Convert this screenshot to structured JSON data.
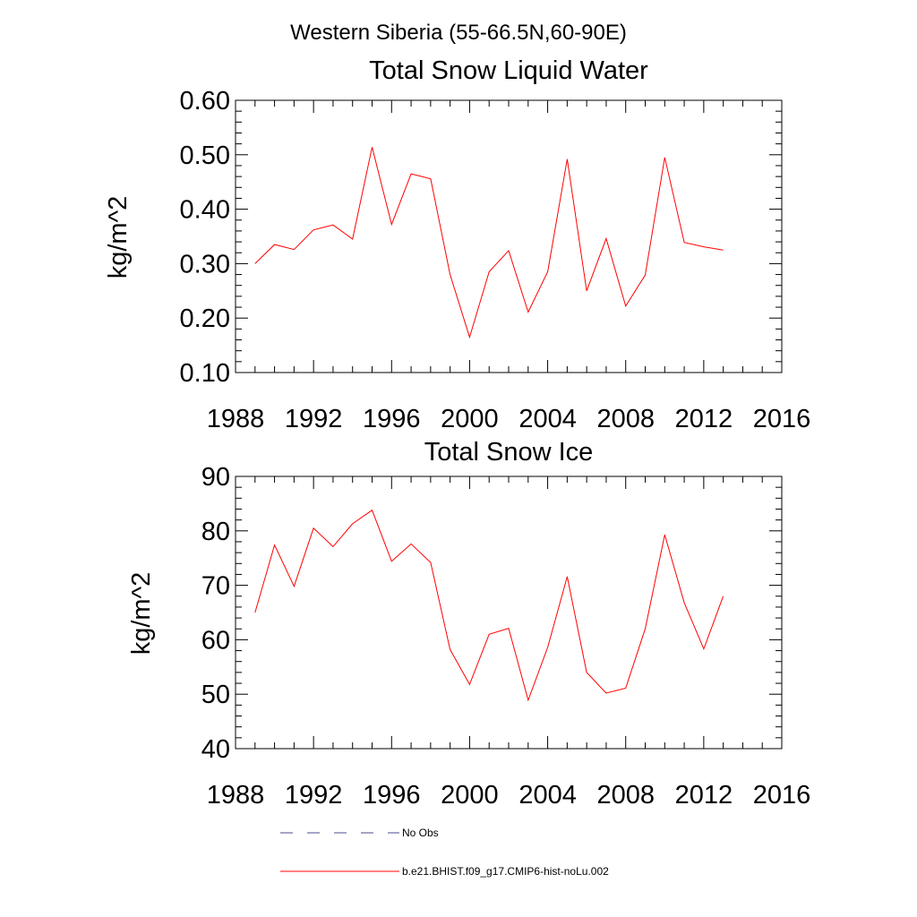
{
  "figure": {
    "title": "Western Siberia (55-66.5N,60-90E)"
  },
  "chart_data": [
    {
      "type": "line",
      "title": "Total Snow Liquid Water",
      "xlabel": "",
      "ylabel": "kg/m^2",
      "xlim": [
        1988,
        2016
      ],
      "ylim": [
        0.1,
        0.6
      ],
      "x_ticks": [
        "1988",
        "1992",
        "1996",
        "2000",
        "2004",
        "2008",
        "2012",
        "2016"
      ],
      "y_ticks": [
        "0.10",
        "0.20",
        "0.30",
        "0.40",
        "0.50",
        "0.60"
      ],
      "x": [
        1989,
        1990,
        1991,
        1992,
        1993,
        1994,
        1995,
        1996,
        1997,
        1998,
        1999,
        2000,
        2001,
        2002,
        2003,
        2004,
        2005,
        2006,
        2007,
        2008,
        2009,
        2010,
        2011,
        2012,
        2013
      ],
      "series": [
        {
          "name": "b.e21.BHIST.f09_g17.CMIP6-hist-noLu.002",
          "color": "#ff0000",
          "values": [
            0.3,
            0.335,
            0.326,
            0.362,
            0.371,
            0.345,
            0.514,
            0.372,
            0.465,
            0.456,
            0.28,
            0.165,
            0.285,
            0.324,
            0.211,
            0.285,
            0.492,
            0.25,
            0.346,
            0.222,
            0.279,
            0.495,
            0.339,
            0.331,
            0.325
          ]
        }
      ]
    },
    {
      "type": "line",
      "title": "Total Snow Ice",
      "xlabel": "",
      "ylabel": "kg/m^2",
      "xlim": [
        1988,
        2016
      ],
      "ylim": [
        40,
        90
      ],
      "x_ticks": [
        "1988",
        "1992",
        "1996",
        "2000",
        "2004",
        "2008",
        "2012",
        "2016"
      ],
      "y_ticks": [
        "40",
        "50",
        "60",
        "70",
        "80",
        "90"
      ],
      "x": [
        1989,
        1990,
        1991,
        1992,
        1993,
        1994,
        1995,
        1996,
        1997,
        1998,
        1999,
        2000,
        2001,
        2002,
        2003,
        2004,
        2005,
        2006,
        2007,
        2008,
        2009,
        2010,
        2011,
        2012,
        2013
      ],
      "series": [
        {
          "name": "b.e21.BHIST.f09_g17.CMIP6-hist-noLu.002",
          "color": "#ff0000",
          "values": [
            65.0,
            77.4,
            69.8,
            80.5,
            77.1,
            81.3,
            83.8,
            74.4,
            77.6,
            74.2,
            58.2,
            51.8,
            61.0,
            62.1,
            48.9,
            58.6,
            71.6,
            54.0,
            50.2,
            51.1,
            62.0,
            79.3,
            66.8,
            58.3,
            68.0
          ]
        }
      ]
    }
  ],
  "legend": {
    "items": [
      {
        "label": "No Obs",
        "color": "#4b4b8c",
        "style": "dashed"
      },
      {
        "label": "b.e21.BHIST.f09_g17.CMIP6-hist-noLu.002",
        "color": "#ff0000",
        "style": "solid"
      }
    ]
  }
}
